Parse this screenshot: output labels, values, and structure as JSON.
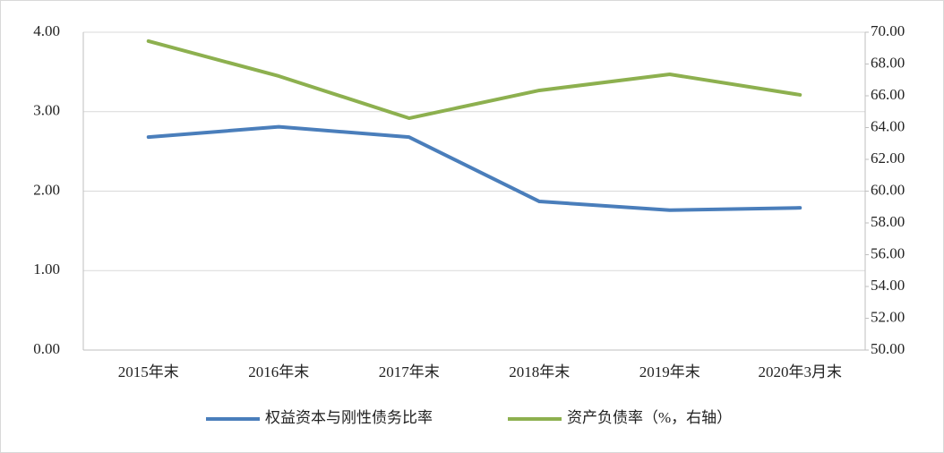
{
  "chart_data": {
    "type": "line",
    "categories": [
      "2015年末",
      "2016年末",
      "2017年末",
      "2018年末",
      "2019年末",
      "2020年3月末"
    ],
    "series": [
      {
        "name": "权益资本与刚性债务比率",
        "color": "#4a7ebb",
        "values": [
          2.68,
          2.81,
          2.68,
          1.87,
          1.76,
          1.79
        ]
      },
      {
        "name": "资产负债率（%，右轴）",
        "color": "#8db04f",
        "axis": "y2",
        "values": [
          69.44,
          67.24,
          64.59,
          66.34,
          67.35,
          66.06
        ]
      }
    ],
    "ylim": [
      0,
      4
    ],
    "yticks": [
      {
        "value": 0,
        "label": "0.00"
      },
      {
        "value": 1,
        "label": "1.00"
      },
      {
        "value": 2,
        "label": "2.00"
      },
      {
        "value": 3,
        "label": "3.00"
      },
      {
        "value": 4,
        "label": "4.00"
      }
    ],
    "y2lim": [
      50,
      70
    ],
    "y2ticks": [
      {
        "value": 50,
        "label": "50.00"
      },
      {
        "value": 52,
        "label": "52.00"
      },
      {
        "value": 54,
        "label": "54.00"
      },
      {
        "value": 56,
        "label": "56.00"
      },
      {
        "value": 58,
        "label": "58.00"
      },
      {
        "value": 60,
        "label": "60.00"
      },
      {
        "value": 62,
        "label": "62.00"
      },
      {
        "value": 64,
        "label": "64.00"
      },
      {
        "value": 66,
        "label": "66.00"
      },
      {
        "value": 68,
        "label": "68.00"
      },
      {
        "value": 70,
        "label": "70.00"
      }
    ],
    "grid": true,
    "legend": "bottom"
  }
}
